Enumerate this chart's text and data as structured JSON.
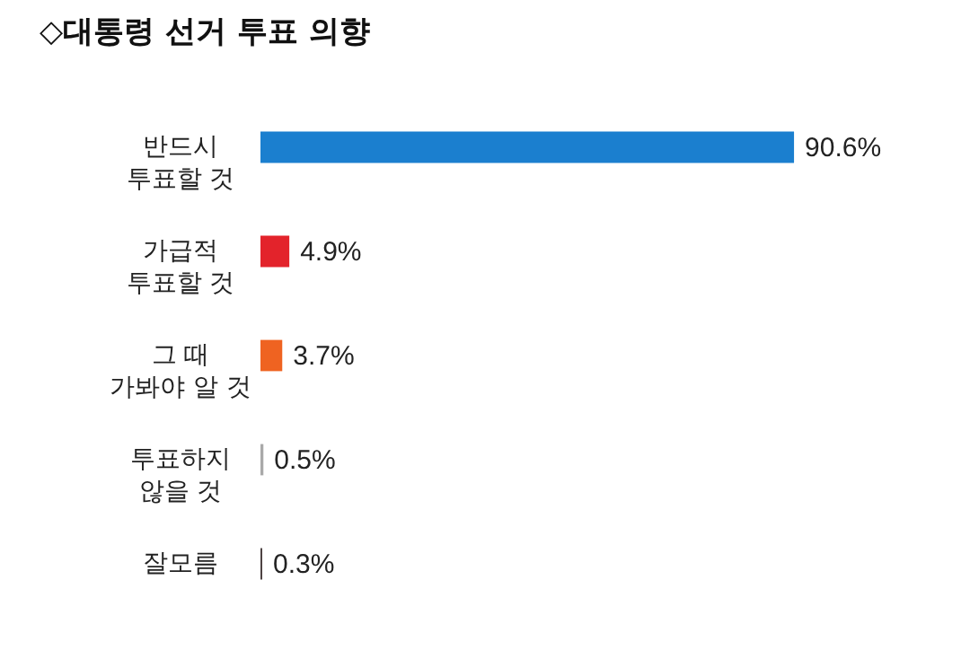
{
  "chart_data": {
    "type": "bar",
    "orientation": "horizontal",
    "title": "◇대통령 선거 투표 의향",
    "categories": [
      "반드시\n투표할 것",
      "가급적\n투표할 것",
      "그 때\n가봐야 알 것",
      "투표하지\n않을 것",
      "잘모름"
    ],
    "values": [
      90.6,
      4.9,
      3.7,
      0.5,
      0.3
    ],
    "colors": [
      "#1b7fcf",
      "#e3232b",
      "#ef6321",
      "#a9a9a9",
      "#4a3f3f"
    ],
    "value_labels": [
      "90.6%",
      "4.9%",
      "3.7%",
      "0.5%",
      "0.3%"
    ]
  }
}
